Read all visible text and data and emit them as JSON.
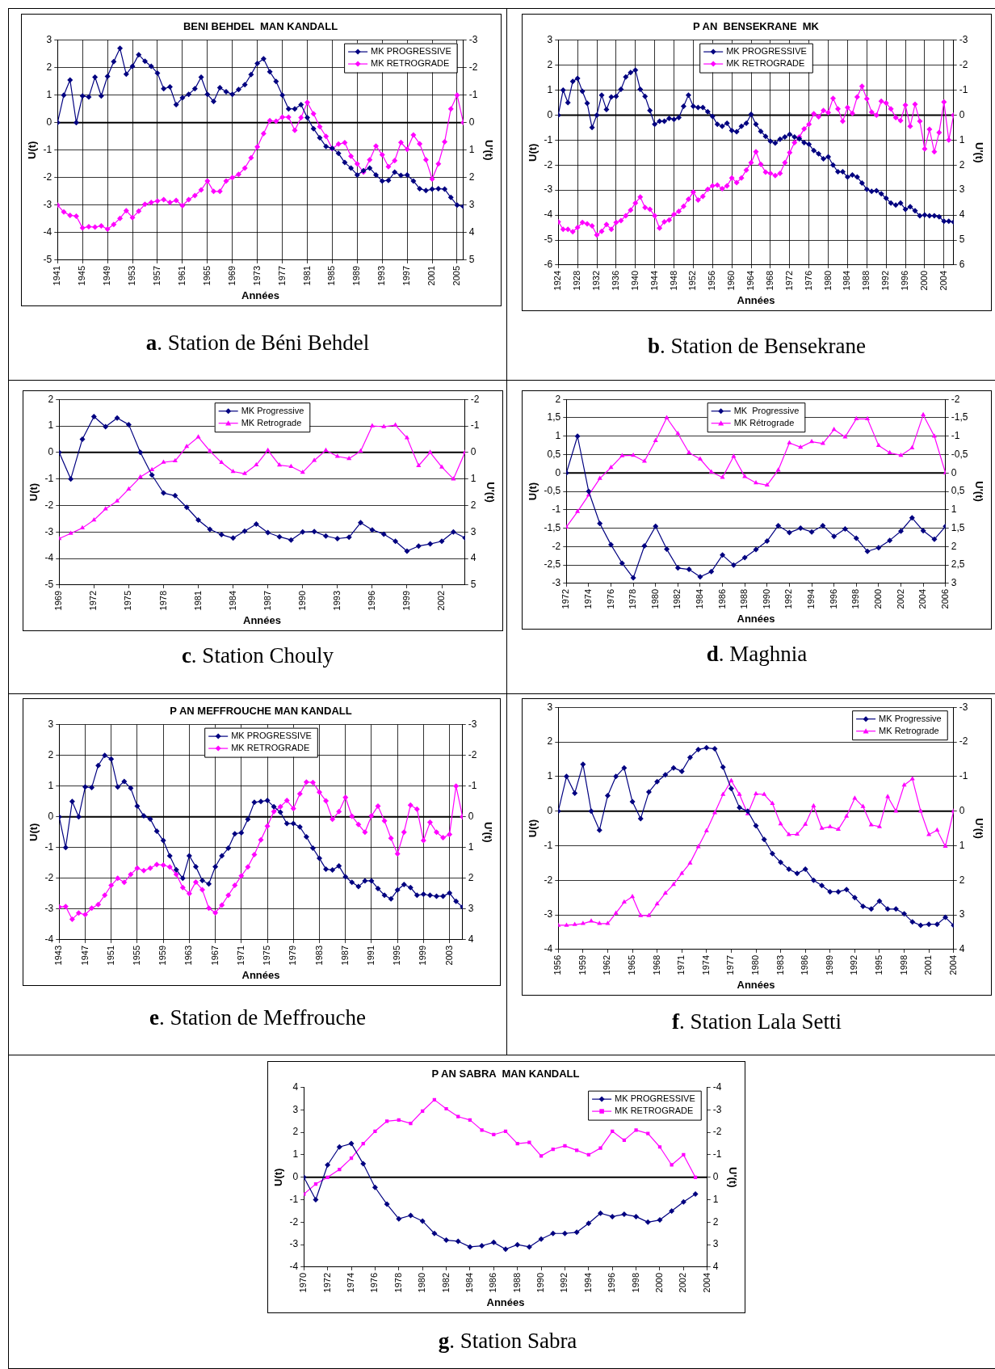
{
  "chart_data": [
    {
      "type": "line",
      "title": "BENI BEHDEL  MAN KANDALL",
      "xlabel": "Années",
      "ylabel": "U(t)",
      "y2label": "U'(t)",
      "legend": "top right",
      "grid": true,
      "x": [
        1941,
        1942,
        1943,
        1944,
        1945,
        1946,
        1947,
        1948,
        1949,
        1950,
        1951,
        1952,
        1953,
        1954,
        1955,
        1956,
        1957,
        1958,
        1959,
        1960,
        1961,
        1962,
        1963,
        1964,
        1965,
        1966,
        1967,
        1968,
        1969,
        1970,
        1971,
        1972,
        1973,
        1974,
        1975,
        1976,
        1977,
        1978,
        1979,
        1980,
        1981,
        1982,
        1983,
        1984,
        1985,
        1986,
        1987,
        1988,
        1989,
        1990,
        1991,
        1992,
        1993,
        1994,
        1995,
        1996,
        1997,
        1998,
        1999,
        2000,
        2001,
        2002,
        2003,
        2004,
        2005,
        2006
      ],
      "xlim": [
        1941,
        2006
      ],
      "xticks": [
        1941,
        1945,
        1949,
        1953,
        1957,
        1961,
        1965,
        1969,
        1973,
        1977,
        1981,
        1985,
        1989,
        1993,
        1997,
        2001,
        2005
      ],
      "ylim": [
        -5,
        3
      ],
      "yticks": [
        -5,
        -4,
        -3,
        -2,
        -1,
        0,
        1,
        2,
        3
      ],
      "y2lim": [
        5,
        -3
      ],
      "y2ticks": [
        -3,
        -2,
        -1,
        0,
        1,
        2,
        3,
        4,
        5
      ],
      "ref_lines": [
        {
          "axis": "y",
          "value": 0
        }
      ],
      "annotations": [
        "a. Station de Béni Behdel"
      ],
      "series": [
        {
          "name": "MK PROGRESSIVE",
          "color": "#000080",
          "marker": "diamond",
          "values": [
            0,
            1.0,
            1.55,
            0,
            0.97,
            0.93,
            1.65,
            0.97,
            1.68,
            2.22,
            2.7,
            1.76,
            2.05,
            2.47,
            2.23,
            2.05,
            1.8,
            1.23,
            1.3,
            0.65,
            0.9,
            1.03,
            1.23,
            1.65,
            1.03,
            0.77,
            1.27,
            1.12,
            1.03,
            1.2,
            1.38,
            1.75,
            2.15,
            2.32,
            1.85,
            1.5,
            1.0,
            0.5,
            0.5,
            0.65,
            0.18,
            -0.22,
            -0.55,
            -0.87,
            -0.93,
            -1.12,
            -1.45,
            -1.65,
            -1.9,
            -1.75,
            -1.65,
            -1.9,
            -2.12,
            -2.1,
            -1.8,
            -1.92,
            -1.9,
            -2.12,
            -2.4,
            -2.47,
            -2.42,
            -2.4,
            -2.42,
            -2.72,
            -3.0,
            -3.05
          ]
        },
        {
          "name": "MK RETROGRADE",
          "color": "#ff00ff",
          "marker": "diamond",
          "values": [
            -3.0,
            -3.25,
            -3.37,
            -3.4,
            -3.83,
            -3.78,
            -3.8,
            -3.75,
            -3.87,
            -3.7,
            -3.48,
            -3.2,
            -3.45,
            -3.22,
            -2.97,
            -2.9,
            -2.85,
            -2.8,
            -2.9,
            -2.83,
            -3.02,
            -2.8,
            -2.65,
            -2.45,
            -2.12,
            -2.5,
            -2.5,
            -2.12,
            -2.0,
            -1.88,
            -1.65,
            -1.28,
            -0.88,
            -0.4,
            0.07,
            0.05,
            0.2,
            0.2,
            -0.28,
            0.18,
            0.73,
            0.32,
            -0.15,
            -0.5,
            -0.95,
            -0.78,
            -0.73,
            -1.22,
            -1.5,
            -1.8,
            -1.35,
            -0.85,
            -1.17,
            -1.6,
            -1.38,
            -0.72,
            -0.97,
            -0.45,
            -0.77,
            -1.35,
            -2.05,
            -1.5,
            -0.7,
            0.5,
            1.0,
            0.0
          ]
        }
      ]
    },
    {
      "type": "line",
      "title": "P AN  BENSEKRANE  MK",
      "xlabel": "Années",
      "ylabel": "U(t)",
      "y2label": "U'(t)",
      "legend": "top",
      "grid": true,
      "x": [
        1924,
        1925,
        1926,
        1927,
        1928,
        1929,
        1930,
        1931,
        1932,
        1933,
        1934,
        1935,
        1936,
        1937,
        1938,
        1939,
        1940,
        1941,
        1942,
        1943,
        1944,
        1945,
        1946,
        1947,
        1948,
        1949,
        1950,
        1951,
        1952,
        1953,
        1954,
        1955,
        1956,
        1957,
        1958,
        1959,
        1960,
        1961,
        1962,
        1963,
        1964,
        1965,
        1966,
        1967,
        1968,
        1969,
        1970,
        1971,
        1972,
        1973,
        1974,
        1975,
        1976,
        1977,
        1978,
        1979,
        1980,
        1981,
        1982,
        1983,
        1984,
        1985,
        1986,
        1987,
        1988,
        1989,
        1990,
        1991,
        1992,
        1993,
        1994,
        1995,
        1996,
        1997,
        1998,
        1999,
        2000,
        2001,
        2002,
        2003,
        2004,
        2005,
        2006
      ],
      "xlim": [
        1924,
        2006
      ],
      "xticks": [
        1924,
        1928,
        1932,
        1936,
        1940,
        1944,
        1948,
        1952,
        1956,
        1960,
        1964,
        1968,
        1972,
        1976,
        1980,
        1984,
        1988,
        1992,
        1996,
        2000,
        2004
      ],
      "ylim": [
        -6,
        3
      ],
      "yticks": [
        -6,
        -5,
        -4,
        -3,
        -2,
        -1,
        0,
        1,
        2,
        3
      ],
      "y2lim": [
        6,
        -3
      ],
      "y2ticks": [
        -3,
        -2,
        -1,
        0,
        1,
        2,
        3,
        4,
        5,
        6
      ],
      "ref_lines": [
        {
          "axis": "y",
          "value": 0
        }
      ],
      "annotations": [
        "b. Station de Bensekrane"
      ],
      "series": [
        {
          "name": "MK PROGRESSIVE",
          "color": "#000080",
          "marker": "diamond",
          "values": [
            0,
            1.0,
            0.5,
            1.35,
            1.47,
            0.95,
            0.47,
            -0.5,
            0.0,
            0.8,
            0.22,
            0.72,
            0.75,
            1.03,
            1.52,
            1.7,
            1.8,
            1.03,
            0.75,
            0.18,
            -0.37,
            -0.25,
            -0.25,
            -0.13,
            -0.17,
            -0.1,
            0.35,
            0.8,
            0.35,
            0.3,
            0.3,
            0.13,
            -0.05,
            -0.37,
            -0.45,
            -0.33,
            -0.62,
            -0.67,
            -0.45,
            -0.33,
            0.03,
            -0.37,
            -0.65,
            -0.85,
            -1.05,
            -1.12,
            -0.97,
            -0.88,
            -0.77,
            -0.88,
            -0.95,
            -1.1,
            -1.17,
            -1.42,
            -1.55,
            -1.75,
            -1.67,
            -2.0,
            -2.27,
            -2.27,
            -2.48,
            -2.4,
            -2.48,
            -2.72,
            -2.97,
            -3.05,
            -3.03,
            -3.15,
            -3.33,
            -3.52,
            -3.6,
            -3.52,
            -3.77,
            -3.67,
            -3.83,
            -4.03,
            -4.0,
            -4.03,
            -4.03,
            -4.07,
            -4.25,
            -4.25,
            -4.28
          ]
        },
        {
          "name": "MK RETROGRADE",
          "color": "#ff00ff",
          "marker": "diamond",
          "values": [
            -4.27,
            -4.57,
            -4.57,
            -4.67,
            -4.5,
            -4.3,
            -4.35,
            -4.43,
            -4.8,
            -4.65,
            -4.38,
            -4.57,
            -4.3,
            -4.22,
            -4.03,
            -3.8,
            -3.52,
            -3.28,
            -3.7,
            -3.77,
            -4.03,
            -4.52,
            -4.27,
            -4.2,
            -3.97,
            -3.85,
            -3.65,
            -3.37,
            -3.08,
            -3.4,
            -3.25,
            -2.97,
            -2.83,
            -2.8,
            -2.95,
            -2.83,
            -2.52,
            -2.7,
            -2.52,
            -2.2,
            -1.9,
            -1.47,
            -1.97,
            -2.28,
            -2.33,
            -2.42,
            -2.33,
            -1.9,
            -1.5,
            -1.1,
            -0.88,
            -0.55,
            -0.37,
            0.05,
            -0.07,
            0.18,
            0.1,
            0.67,
            0.25,
            -0.25,
            0.3,
            0.07,
            0.72,
            1.15,
            0.65,
            0.12,
            0.0,
            0.55,
            0.48,
            0.25,
            -0.1,
            -0.22,
            0.4,
            -0.45,
            0.43,
            -0.25,
            -1.35,
            -0.57,
            -1.47,
            -0.7,
            0.52,
            -1.0,
            0.0
          ]
        }
      ]
    },
    {
      "type": "line",
      "xlabel": "Années",
      "ylabel": "U(t)",
      "y2label": "U'(t)",
      "legend": "top",
      "grid": "y",
      "x": [
        1969,
        1970,
        1971,
        1972,
        1973,
        1974,
        1975,
        1976,
        1977,
        1978,
        1979,
        1980,
        1981,
        1982,
        1983,
        1984,
        1985,
        1986,
        1987,
        1988,
        1989,
        1990,
        1991,
        1992,
        1993,
        1994,
        1995,
        1996,
        1997,
        1998,
        1999,
        2000,
        2001,
        2002,
        2003,
        2004
      ],
      "xlim": [
        1969,
        2004
      ],
      "xticks": [
        1969,
        1972,
        1975,
        1978,
        1981,
        1984,
        1987,
        1990,
        1993,
        1996,
        1999,
        2002
      ],
      "ylim": [
        -5,
        2
      ],
      "yticks": [
        -5,
        -4,
        -3,
        -2,
        -1,
        0,
        1,
        2
      ],
      "y2lim": [
        5,
        -2
      ],
      "y2ticks": [
        -2,
        -1,
        0,
        1,
        2,
        3,
        4,
        5
      ],
      "ref_lines": [
        {
          "axis": "y",
          "value": 0
        }
      ],
      "annotations": [
        "c. Station  Chouly"
      ],
      "series": [
        {
          "name": "MK Progressive",
          "color": "#000080",
          "marker": "diamond",
          "values": [
            0,
            -1.0,
            0.5,
            1.35,
            0.97,
            1.3,
            1.05,
            0,
            -0.85,
            -1.53,
            -1.63,
            -2.07,
            -2.55,
            -2.9,
            -3.1,
            -3.23,
            -2.97,
            -2.7,
            -3.02,
            -3.18,
            -3.3,
            -3.0,
            -2.98,
            -3.15,
            -3.25,
            -3.2,
            -2.65,
            -2.92,
            -3.08,
            -3.35,
            -3.72,
            -3.53,
            -3.45,
            -3.35,
            -3.0,
            -3.22
          ]
        },
        {
          "name": "MK Retrograde",
          "color": "#ff00ff",
          "marker": "triangle",
          "values": [
            -3.25,
            -3.05,
            -2.85,
            -2.55,
            -2.13,
            -1.83,
            -1.38,
            -0.93,
            -0.65,
            -0.37,
            -0.32,
            0.22,
            0.58,
            0.05,
            -0.38,
            -0.72,
            -0.8,
            -0.47,
            0.08,
            -0.48,
            -0.53,
            -0.75,
            -0.3,
            0.08,
            -0.15,
            -0.23,
            0.05,
            1.0,
            0.97,
            1.03,
            0.55,
            -0.5,
            0.0,
            -0.55,
            -1.0,
            0.0
          ]
        }
      ]
    },
    {
      "type": "line",
      "xlabel": "Années",
      "ylabel": "U(t)",
      "y2label": "U'(t)",
      "legend": "top",
      "grid": "y",
      "x": [
        1972,
        1973,
        1974,
        1975,
        1976,
        1977,
        1978,
        1979,
        1980,
        1981,
        1982,
        1983,
        1984,
        1985,
        1986,
        1987,
        1988,
        1989,
        1990,
        1991,
        1992,
        1993,
        1994,
        1995,
        1996,
        1997,
        1998,
        1999,
        2000,
        2001,
        2002,
        2003,
        2004,
        2005,
        2006
      ],
      "xlim": [
        1972,
        2006
      ],
      "xticks": [
        1972,
        1974,
        1976,
        1978,
        1980,
        1982,
        1984,
        1986,
        1988,
        1990,
        1992,
        1994,
        1996,
        1998,
        2000,
        2002,
        2004,
        2006
      ],
      "ylim": [
        -3,
        2
      ],
      "yticks": [
        -3,
        {
          "value": -2.5,
          "label": "-2,5"
        },
        -2,
        {
          "value": -1.5,
          "label": "-1,5"
        },
        -1,
        {
          "value": -0.5,
          "label": "-0,5"
        },
        0,
        {
          "value": 0.5,
          "label": "0,5"
        },
        1,
        {
          "value": 1.5,
          "label": "1,5"
        },
        2
      ],
      "y2lim": [
        3,
        -2
      ],
      "y2ticks": [
        -2,
        {
          "value": -1.5,
          "label": "-1,5"
        },
        -1,
        {
          "value": -0.5,
          "label": "-0,5"
        },
        0,
        {
          "value": 0.5,
          "label": "0,5"
        },
        1,
        {
          "value": 1.5,
          "label": "1,5"
        },
        2,
        {
          "value": 2.5,
          "label": "2,5"
        },
        3
      ],
      "ref_lines": [
        {
          "axis": "y",
          "value": 0
        }
      ],
      "annotations": [
        "d. Maghnia"
      ],
      "series": [
        {
          "name": "MK  Progressive",
          "color": "#000080",
          "marker": "diamond",
          "values": [
            0,
            1.0,
            -0.5,
            -1.37,
            -1.95,
            -2.45,
            -2.85,
            -1.98,
            -1.45,
            -2.07,
            -2.58,
            -2.62,
            -2.82,
            -2.68,
            -2.23,
            -2.5,
            -2.3,
            -2.08,
            -1.85,
            -1.43,
            -1.62,
            -1.5,
            -1.6,
            -1.43,
            -1.72,
            -1.52,
            -1.77,
            -2.13,
            -2.03,
            -1.83,
            -1.58,
            -1.22,
            -1.57,
            -1.8,
            -1.45
          ]
        },
        {
          "name": "MK Rétrograde",
          "color": "#ff00ff",
          "marker": "triangle",
          "values": [
            -1.47,
            -1.05,
            -0.6,
            -0.15,
            0.15,
            0.47,
            0.48,
            0.32,
            0.88,
            1.5,
            1.07,
            0.55,
            0.38,
            0.03,
            -0.12,
            0.45,
            -0.1,
            -0.27,
            -0.33,
            0.08,
            0.82,
            0.7,
            0.85,
            0.8,
            1.18,
            0.98,
            1.47,
            1.47,
            0.75,
            0.55,
            0.48,
            0.68,
            1.58,
            1.0,
            0.0
          ]
        }
      ]
    },
    {
      "type": "line",
      "title": "P AN MEFFROUCHE MAN KANDALL",
      "xlabel": "Années",
      "ylabel": "U(t)",
      "y2label": "U'(t)",
      "legend": "top",
      "grid": true,
      "x": [
        1943,
        1944,
        1945,
        1946,
        1947,
        1948,
        1949,
        1950,
        1951,
        1952,
        1953,
        1954,
        1955,
        1956,
        1957,
        1958,
        1959,
        1960,
        1961,
        1962,
        1963,
        1964,
        1965,
        1966,
        1967,
        1968,
        1969,
        1970,
        1971,
        1972,
        1973,
        1974,
        1975,
        1976,
        1977,
        1978,
        1979,
        1980,
        1981,
        1982,
        1983,
        1984,
        1985,
        1986,
        1987,
        1988,
        1989,
        1990,
        1991,
        1992,
        1993,
        1994,
        1995,
        1996,
        1997,
        1998,
        1999,
        2000,
        2001,
        2002,
        2003,
        2004,
        2005
      ],
      "xlim": [
        1943,
        2005
      ],
      "xticks": [
        1943,
        1947,
        1951,
        1955,
        1959,
        1963,
        1967,
        1971,
        1975,
        1979,
        1983,
        1987,
        1991,
        1995,
        1999,
        2003
      ],
      "ylim": [
        -4,
        3
      ],
      "yticks": [
        -4,
        -3,
        -2,
        -1,
        0,
        1,
        2,
        3
      ],
      "y2lim": [
        4,
        -3
      ],
      "y2ticks": [
        -3,
        -2,
        -1,
        0,
        1,
        2,
        3,
        4
      ],
      "ref_lines": [
        {
          "axis": "y",
          "value": 0
        }
      ],
      "annotations": [
        "e. Station de Meffrouche"
      ],
      "series": [
        {
          "name": "MK PROGRESSIVE",
          "color": "#000080",
          "marker": "diamond",
          "values": [
            0,
            -1.0,
            0.5,
            0.0,
            0.97,
            0.95,
            1.67,
            2.0,
            1.88,
            0.97,
            1.15,
            0.93,
            0.35,
            0.03,
            -0.07,
            -0.47,
            -0.77,
            -1.27,
            -1.72,
            -2.0,
            -1.27,
            -1.62,
            -2.07,
            -2.18,
            -1.62,
            -1.27,
            -1.02,
            -0.55,
            -0.52,
            -0.08,
            0.47,
            0.5,
            0.53,
            0.33,
            0.15,
            -0.22,
            -0.22,
            -0.33,
            -0.65,
            -1.02,
            -1.35,
            -1.7,
            -1.73,
            -1.6,
            -1.95,
            -2.13,
            -2.27,
            -2.08,
            -2.08,
            -2.33,
            -2.55,
            -2.67,
            -2.38,
            -2.2,
            -2.3,
            -2.55,
            -2.52,
            -2.55,
            -2.58,
            -2.58,
            -2.48,
            -2.75,
            -2.93
          ]
        },
        {
          "name": "MK RETROGRADE",
          "color": "#ff00ff",
          "marker": "diamond",
          "values": [
            -2.93,
            -2.92,
            -3.33,
            -3.13,
            -3.18,
            -2.97,
            -2.85,
            -2.55,
            -2.23,
            -2.0,
            -2.13,
            -1.87,
            -1.67,
            -1.75,
            -1.67,
            -1.55,
            -1.57,
            -1.63,
            -1.87,
            -2.3,
            -2.5,
            -2.12,
            -2.37,
            -2.97,
            -3.12,
            -2.87,
            -2.55,
            -2.23,
            -1.92,
            -1.63,
            -1.23,
            -0.75,
            -0.3,
            0.17,
            0.33,
            0.53,
            0.27,
            0.75,
            1.13,
            1.12,
            0.8,
            0.52,
            -0.08,
            0.17,
            0.63,
            0.02,
            -0.25,
            -0.5,
            0.03,
            0.35,
            -0.13,
            -0.7,
            -1.2,
            -0.5,
            0.38,
            0.25,
            -0.77,
            -0.18,
            -0.5,
            -0.68,
            -0.57,
            1.0,
            0.0
          ]
        }
      ]
    },
    {
      "type": "line",
      "xlabel": "Années",
      "ylabel": "U(t)",
      "y2label": "U'(t)",
      "legend": "top right",
      "grid": "y",
      "x": [
        1956,
        1957,
        1958,
        1959,
        1960,
        1961,
        1962,
        1963,
        1964,
        1965,
        1966,
        1967,
        1968,
        1969,
        1970,
        1971,
        1972,
        1973,
        1974,
        1975,
        1976,
        1977,
        1978,
        1979,
        1980,
        1981,
        1982,
        1983,
        1984,
        1985,
        1986,
        1987,
        1988,
        1989,
        1990,
        1991,
        1992,
        1993,
        1994,
        1995,
        1996,
        1997,
        1998,
        1999,
        2000,
        2001,
        2002,
        2003,
        2004
      ],
      "xlim": [
        1956,
        2004
      ],
      "xticks": [
        1956,
        1959,
        1962,
        1965,
        1968,
        1971,
        1974,
        1977,
        1980,
        1983,
        1986,
        1989,
        1992,
        1995,
        1998,
        2001,
        2004
      ],
      "ylim": [
        -4,
        3
      ],
      "yticks": [
        -4,
        -3,
        -2,
        -1,
        0,
        1,
        2,
        3
      ],
      "y2lim": [
        4,
        -3
      ],
      "y2ticks": [
        -3,
        -2,
        -1,
        0,
        1,
        2,
        3,
        4
      ],
      "ref_lines": [
        {
          "axis": "y",
          "value": 0
        }
      ],
      "annotations": [
        "f. Station Lala Setti"
      ],
      "series": [
        {
          "name": "MK Progressive",
          "color": "#000080",
          "marker": "diamond",
          "values": [
            0,
            1.0,
            0.52,
            1.35,
            0.0,
            -0.55,
            0.45,
            1.0,
            1.25,
            0.27,
            -0.22,
            0.55,
            0.85,
            1.05,
            1.25,
            1.15,
            1.55,
            1.78,
            1.83,
            1.8,
            1.27,
            0.65,
            0.1,
            0.0,
            -0.42,
            -0.82,
            -1.23,
            -1.48,
            -1.68,
            -1.8,
            -1.68,
            -2.0,
            -2.15,
            -2.33,
            -2.33,
            -2.27,
            -2.5,
            -2.75,
            -2.83,
            -2.6,
            -2.83,
            -2.83,
            -2.97,
            -3.2,
            -3.3,
            -3.27,
            -3.27,
            -3.07,
            -3.3
          ]
        },
        {
          "name": "MK Retrograde",
          "color": "#ff00ff",
          "marker": "triangle",
          "values": [
            -3.3,
            -3.3,
            -3.28,
            -3.25,
            -3.18,
            -3.25,
            -3.25,
            -2.95,
            -2.63,
            -2.47,
            -3.02,
            -3.02,
            -2.68,
            -2.37,
            -2.12,
            -1.8,
            -1.5,
            -1.03,
            -0.57,
            -0.05,
            0.48,
            0.88,
            0.48,
            -0.08,
            0.5,
            0.48,
            0.22,
            -0.37,
            -0.68,
            -0.67,
            -0.38,
            0.15,
            -0.5,
            -0.45,
            -0.53,
            -0.15,
            0.37,
            0.13,
            -0.4,
            -0.45,
            0.42,
            0.0,
            0.75,
            0.93,
            0.0,
            -0.68,
            -0.55,
            -1.02,
            0.0
          ]
        }
      ]
    },
    {
      "type": "line",
      "title": "P AN SABRA  MAN KANDALL",
      "xlabel": "Années",
      "ylabel": "U(t)",
      "y2label": "U'(t)",
      "legend": "top right",
      "x": [
        1970,
        1971,
        1972,
        1973,
        1974,
        1975,
        1976,
        1977,
        1978,
        1979,
        1980,
        1981,
        1982,
        1983,
        1984,
        1985,
        1986,
        1987,
        1988,
        1989,
        1990,
        1991,
        1992,
        1993,
        1994,
        1995,
        1996,
        1997,
        1998,
        1999,
        2000,
        2001,
        2002,
        2003
      ],
      "xlim": [
        1970,
        2004
      ],
      "xticks": [
        1970,
        1972,
        1974,
        1976,
        1978,
        1980,
        1982,
        1984,
        1986,
        1988,
        1990,
        1992,
        1994,
        1996,
        1998,
        2000,
        2002,
        2004
      ],
      "ylim": [
        -4,
        4
      ],
      "yticks": [
        -4,
        -3,
        -2,
        -1,
        0,
        1,
        2,
        3,
        4
      ],
      "y2lim": [
        4,
        -4
      ],
      "y2ticks": [
        -4,
        -3,
        -2,
        -1,
        0,
        1,
        2,
        3,
        4
      ],
      "ref_lines": [
        {
          "axis": "y",
          "value": 0
        }
      ],
      "annotations": [
        "g. Station Sabra"
      ],
      "series": [
        {
          "name": "MK PROGRESSIVE",
          "color": "#000080",
          "marker": "diamond",
          "values": [
            0,
            -1.0,
            0.55,
            1.35,
            1.5,
            0.6,
            -0.45,
            -1.2,
            -1.85,
            -1.7,
            -1.95,
            -2.5,
            -2.8,
            -2.85,
            -3.1,
            -3.05,
            -2.9,
            -3.2,
            -3.0,
            -3.1,
            -2.75,
            -2.5,
            -2.5,
            -2.45,
            -2.05,
            -1.6,
            -1.75,
            -1.65,
            -1.75,
            -2.0,
            -1.9,
            -1.5,
            -1.1,
            -0.75
          ]
        },
        {
          "name": "MK RETROGRADE",
          "color": "#ff00ff",
          "marker": "square",
          "values": [
            -0.75,
            -0.3,
            0.0,
            0.35,
            0.85,
            1.5,
            2.05,
            2.5,
            2.55,
            2.4,
            2.95,
            3.45,
            3.05,
            2.7,
            2.55,
            2.1,
            1.9,
            2.05,
            1.5,
            1.55,
            0.95,
            1.25,
            1.4,
            1.2,
            1.0,
            1.3,
            2.05,
            1.65,
            2.1,
            1.95,
            1.35,
            0.55,
            1.0,
            0.0
          ]
        }
      ]
    }
  ]
}
